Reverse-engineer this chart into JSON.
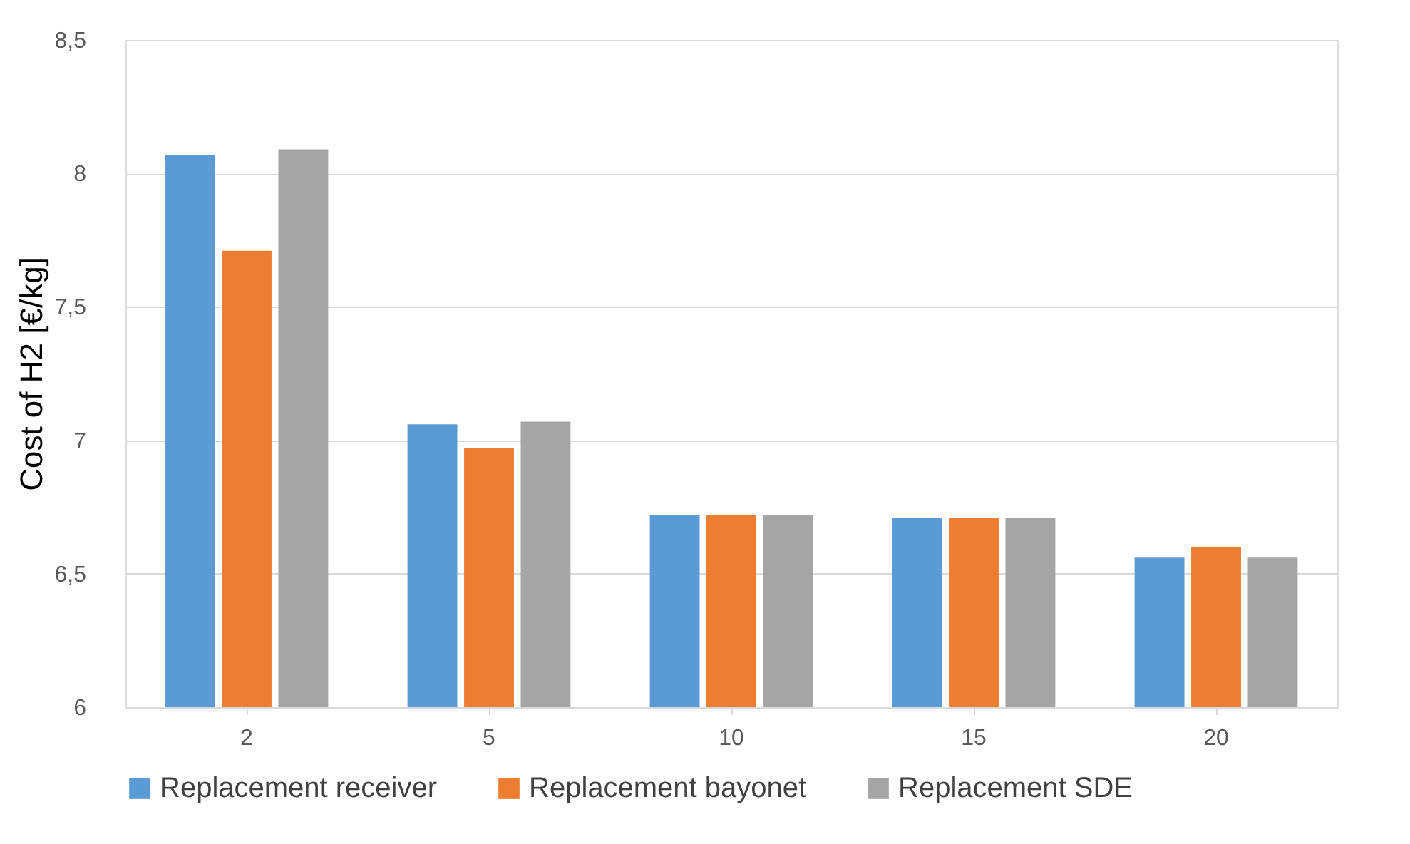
{
  "chart_data": {
    "type": "bar",
    "ylabel": "Cost of H2 [€/kg]",
    "categories": [
      "2",
      "5",
      "10",
      "15",
      "20"
    ],
    "series": [
      {
        "name": "Replacement receiver",
        "color": "#5b9bd5",
        "values": [
          8.07,
          7.06,
          6.72,
          6.71,
          6.56
        ]
      },
      {
        "name": "Replacement bayonet",
        "color": "#ed7d31",
        "values": [
          7.71,
          6.97,
          6.72,
          6.71,
          6.6
        ]
      },
      {
        "name": "Replacement SDE",
        "color": "#a5a5a5",
        "values": [
          8.09,
          7.07,
          6.72,
          6.71,
          6.56
        ]
      }
    ],
    "ylim": [
      6,
      8.5
    ],
    "yticks": [
      6,
      {
        "value": 6.5,
        "label": "6,5"
      },
      7,
      {
        "value": 7.5,
        "label": "7,5"
      },
      8,
      {
        "value": 8.5,
        "label": "8,5"
      }
    ],
    "grid": "y",
    "legend": "bottom"
  }
}
